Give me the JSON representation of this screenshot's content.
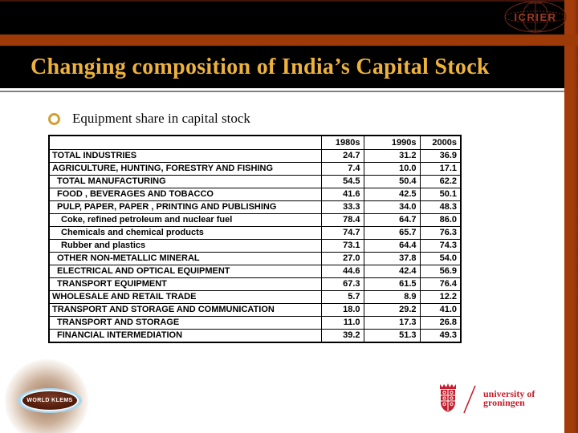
{
  "slide": {
    "title": "Changing composition of India’s Capital Stock",
    "bullet": "Equipment share in capital stock"
  },
  "logos": {
    "icrier": {
      "text": "ICRIER"
    },
    "world_klems": {
      "text": "WORLD KLEMS"
    },
    "groningen": {
      "line1": "university of",
      "line2": "groningen"
    }
  },
  "colors": {
    "accent_rust": "#9d3a07",
    "title_gold": "#edb23c",
    "band_black": "#000000",
    "groningen_red": "#c31f2e",
    "icrier_red": "#9c3a22",
    "klems_blue": "#a9d6ec",
    "klems_maroon": "#58200f"
  },
  "chart_data": {
    "type": "table",
    "columns": [
      "",
      "1980s",
      "1990s",
      "2000s"
    ],
    "rows": [
      {
        "label": "TOTAL INDUSTRIES",
        "indent": 0,
        "values": [
          "24.7",
          "31.2",
          "36.9"
        ]
      },
      {
        "label": "AGRICULTURE, HUNTING, FORESTRY AND FISHING",
        "indent": 0,
        "values": [
          "7.4",
          "10.0",
          "17.1"
        ]
      },
      {
        "label": "TOTAL MANUFACTURING",
        "indent": 1,
        "values": [
          "54.5",
          "50.4",
          "62.2"
        ]
      },
      {
        "label": "FOOD , BEVERAGES AND TOBACCO",
        "indent": 1,
        "values": [
          "41.6",
          "42.5",
          "50.1"
        ]
      },
      {
        "label": "PULP, PAPER, PAPER , PRINTING AND PUBLISHING",
        "indent": 1,
        "values": [
          "33.3",
          "34.0",
          "48.3"
        ]
      },
      {
        "label": "Coke, refined petroleum and nuclear fuel",
        "indent": 2,
        "values": [
          "78.4",
          "64.7",
          "86.0"
        ]
      },
      {
        "label": "Chemicals and chemical products",
        "indent": 2,
        "values": [
          "74.7",
          "65.7",
          "76.3"
        ]
      },
      {
        "label": "Rubber and plastics",
        "indent": 2,
        "values": [
          "73.1",
          "64.4",
          "74.3"
        ]
      },
      {
        "label": "OTHER NON-METALLIC MINERAL",
        "indent": 1,
        "values": [
          "27.0",
          "37.8",
          "54.0"
        ]
      },
      {
        "label": "ELECTRICAL AND OPTICAL EQUIPMENT",
        "indent": 1,
        "values": [
          "44.6",
          "42.4",
          "56.9"
        ]
      },
      {
        "label": "TRANSPORT EQUIPMENT",
        "indent": 1,
        "values": [
          "67.3",
          "61.5",
          "76.4"
        ]
      },
      {
        "label": "WHOLESALE AND RETAIL TRADE",
        "indent": 0,
        "values": [
          "5.7",
          "8.9",
          "12.2"
        ]
      },
      {
        "label": "TRANSPORT AND STORAGE AND COMMUNICATION",
        "indent": 0,
        "values": [
          "18.0",
          "29.2",
          "41.0"
        ]
      },
      {
        "label": "TRANSPORT AND STORAGE",
        "indent": 1,
        "values": [
          "11.0",
          "17.3",
          "26.8"
        ]
      },
      {
        "label": "FINANCIAL INTERMEDIATION",
        "indent": 1,
        "values": [
          "39.2",
          "51.3",
          "49.3"
        ]
      }
    ]
  }
}
